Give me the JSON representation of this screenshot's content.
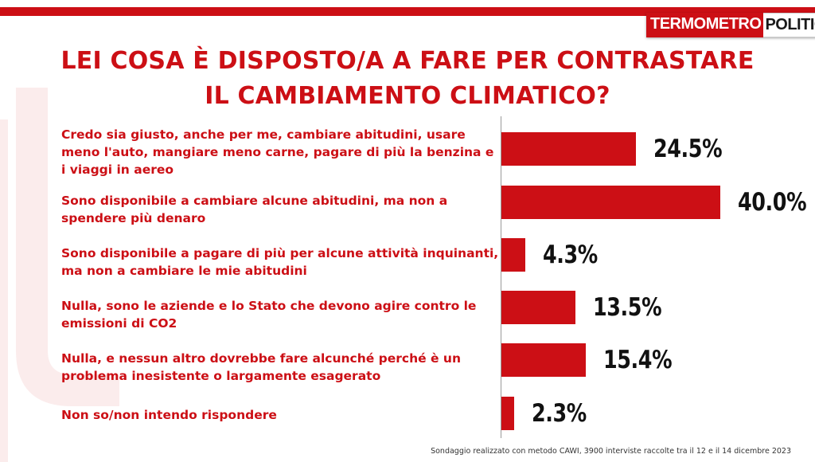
{
  "brand": {
    "part1": "TERMOMETRO",
    "part2": "POLITICO"
  },
  "title": {
    "line1": "LEI COSA È DISPOSTO/A A FARE PER CONTRASTARE",
    "line2": "IL CAMBIAMENTO CLIMATICO?"
  },
  "footnote": "Sondaggio realizzato con metodo CAWI, 3900 interviste raccolte tra il 12 e il 14 dicembre 2023",
  "colors": {
    "accent": "#cc0f15",
    "value_text": "#111111"
  },
  "chart_data": {
    "type": "bar",
    "orientation": "horizontal",
    "categories": [
      "Credo sia giusto, anche per me, cambiare abitudini, usare meno l'auto, mangiare meno carne, pagare di più la benzina e i viaggi in aereo",
      "Sono disponibile a cambiare alcune abitudini, ma non a spendere più denaro",
      "Sono disponibile a pagare di più per alcune attività inquinanti, ma non a cambiare le mie abitudini",
      "Nulla, sono le aziende e lo Stato che devono agire contro le emissioni di CO2",
      "Nulla, e nessun altro dovrebbe fare alcunché perché è un problema inesistente o largamente esagerato",
      "Non so/non intendo rispondere"
    ],
    "values": [
      24.5,
      40.0,
      4.3,
      13.5,
      15.4,
      2.3
    ],
    "value_labels": [
      "24.5%",
      "40.0%",
      "4.3%",
      "13.5%",
      "15.4%",
      "2.3%"
    ],
    "unit": "%",
    "xlim": [
      0,
      40
    ],
    "grid": false,
    "legend": "none"
  }
}
